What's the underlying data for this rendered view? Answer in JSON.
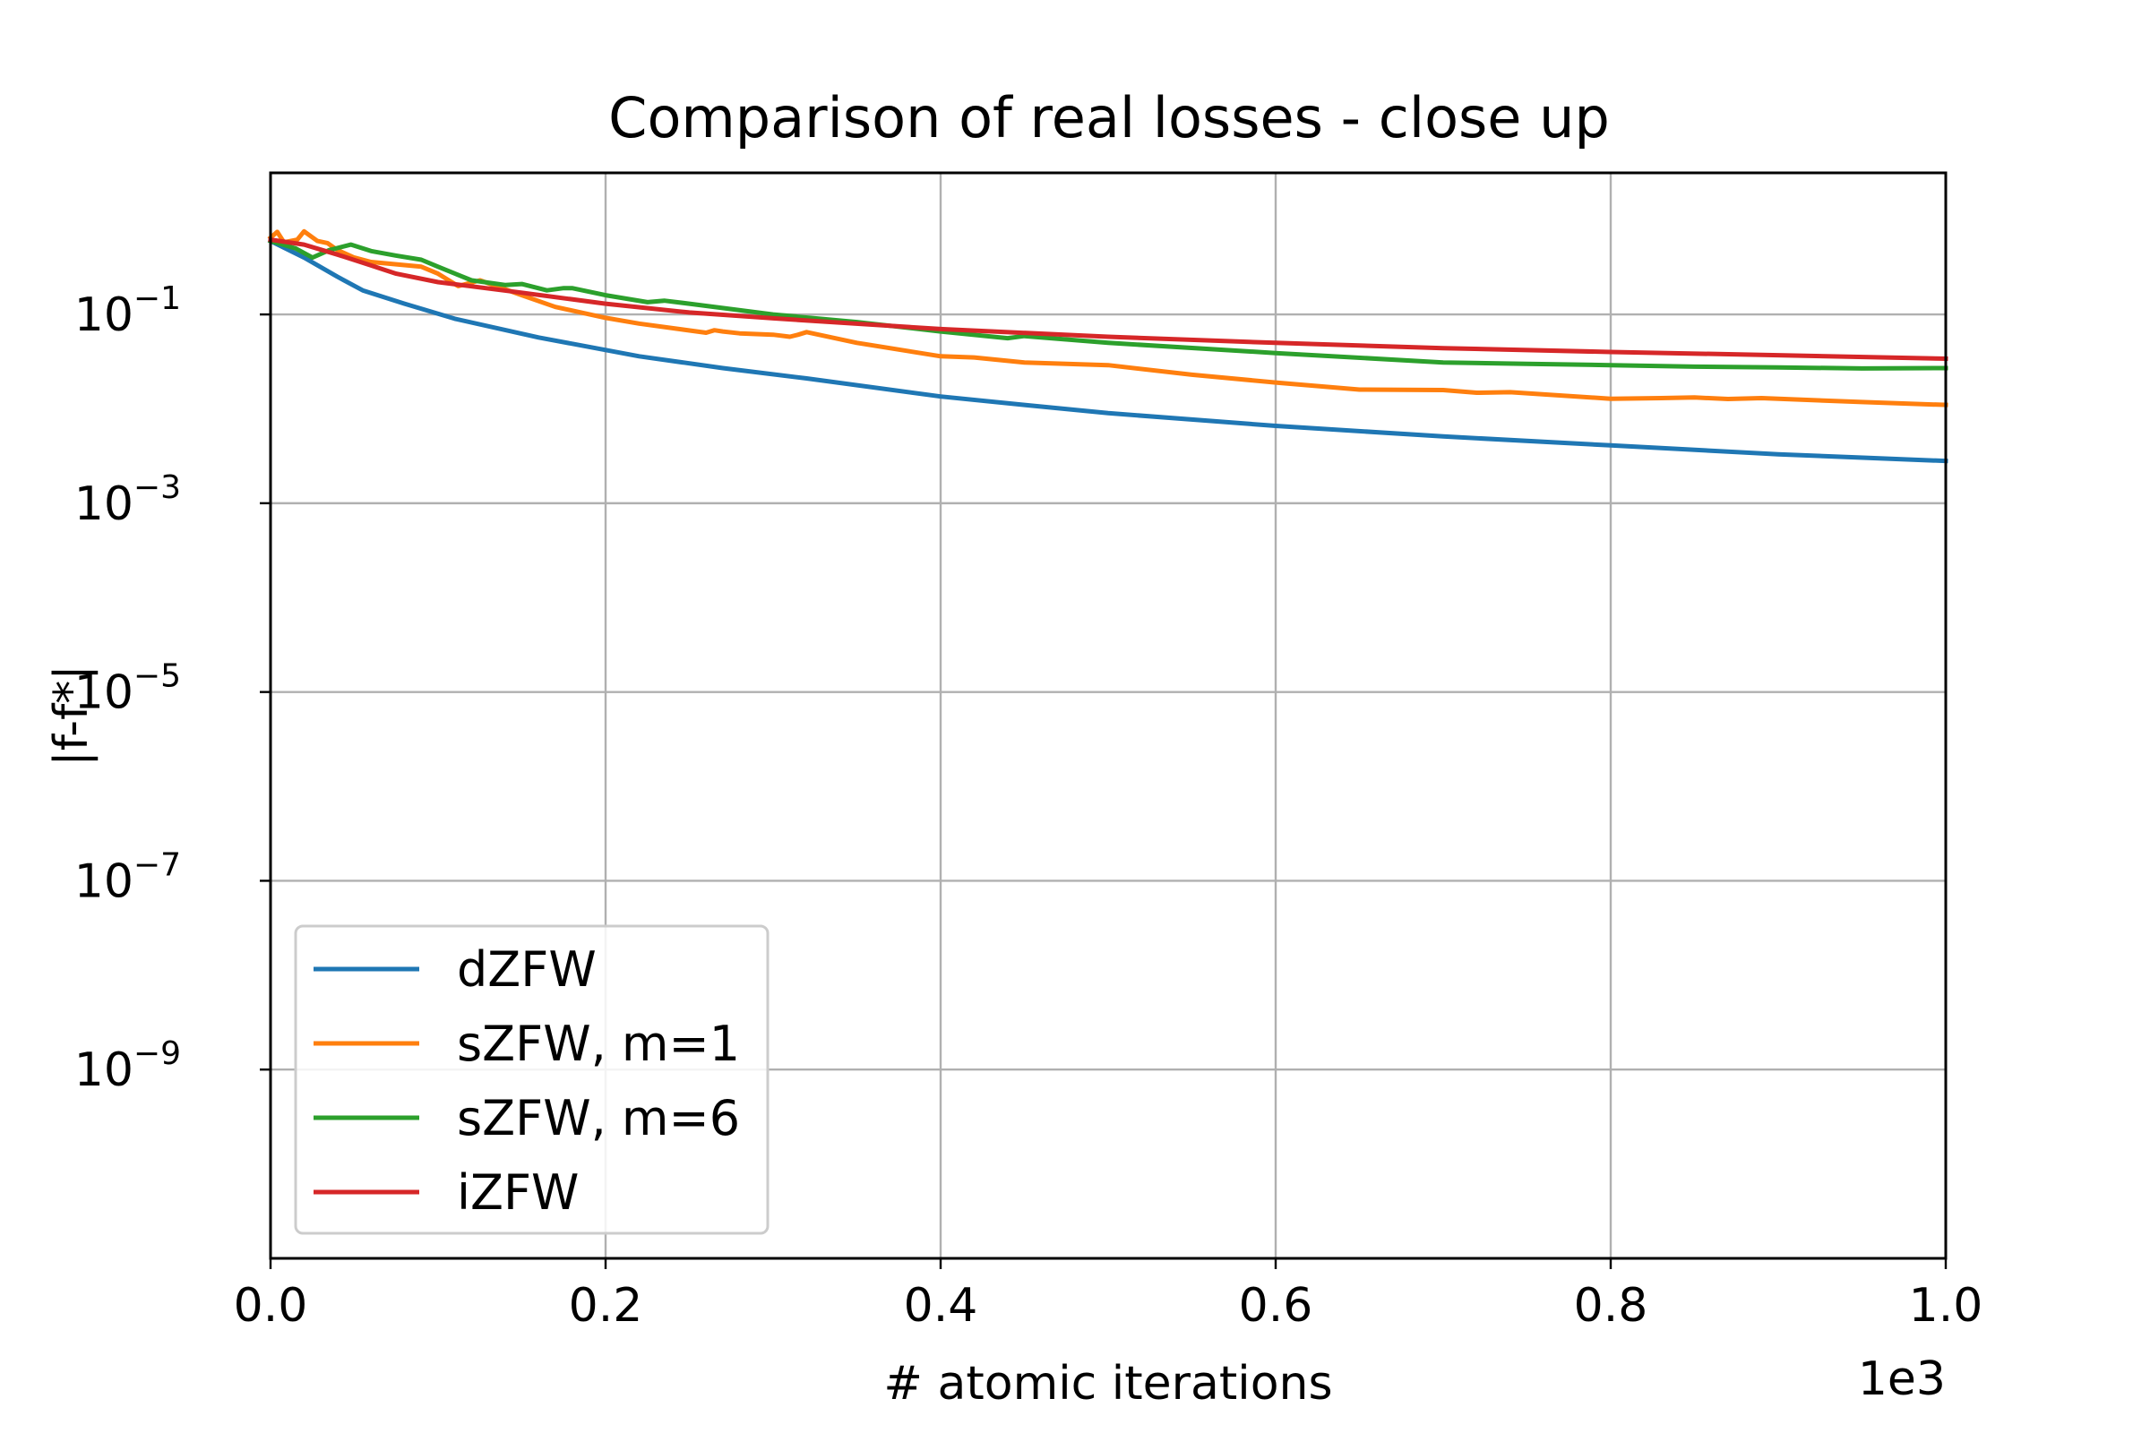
{
  "chart_data": {
    "type": "line",
    "title": "Comparison of real losses - close up",
    "xlabel": "# atomic iterations",
    "ylabel": "|f-f*|",
    "x_offset_label": "1e3",
    "xscale": "linear",
    "yscale": "log",
    "xlim": [
      0,
      1000
    ],
    "ylim_exp": [
      -11,
      0.5
    ],
    "grid": true,
    "legend_position": "lower-left",
    "x_ticks": [
      {
        "value": 0,
        "label": "0.0"
      },
      {
        "value": 200,
        "label": "0.2"
      },
      {
        "value": 400,
        "label": "0.4"
      },
      {
        "value": 600,
        "label": "0.6"
      },
      {
        "value": 800,
        "label": "0.8"
      },
      {
        "value": 1000,
        "label": "1.0"
      }
    ],
    "y_ticks": [
      {
        "exp": -1,
        "base": "10",
        "sup": "−1"
      },
      {
        "exp": -3,
        "base": "10",
        "sup": "−3"
      },
      {
        "exp": -5,
        "base": "10",
        "sup": "−5"
      },
      {
        "exp": -7,
        "base": "10",
        "sup": "−7"
      },
      {
        "exp": -9,
        "base": "10",
        "sup": "−9"
      }
    ],
    "series": [
      {
        "name": "dZFW",
        "color": "#1f77b4",
        "x": [
          0,
          20,
          40,
          55,
          80,
          110,
          160,
          220,
          270,
          320,
          400,
          450,
          500,
          600,
          700,
          800,
          900,
          1000
        ],
        "y": [
          0.6,
          0.4,
          0.25,
          0.18,
          0.13,
          0.09,
          0.057,
          0.036,
          0.027,
          0.021,
          0.0135,
          0.011,
          0.009,
          0.0066,
          0.0051,
          0.0041,
          0.0033,
          0.0028
        ]
      },
      {
        "name": "sZFW, m=1",
        "color": "#ff7f0e",
        "x": [
          0,
          4,
          8,
          16,
          20,
          28,
          34,
          40,
          50,
          60,
          75,
          90,
          100,
          112,
          125,
          150,
          170,
          200,
          220,
          260,
          265,
          270,
          280,
          300,
          310,
          315,
          320,
          350,
          400,
          420,
          450,
          500,
          550,
          600,
          650,
          700,
          720,
          740,
          800,
          830,
          850,
          870,
          890,
          950,
          1000
        ],
        "y": [
          0.65,
          0.75,
          0.58,
          0.62,
          0.76,
          0.6,
          0.57,
          0.48,
          0.4,
          0.36,
          0.34,
          0.32,
          0.27,
          0.2,
          0.23,
          0.16,
          0.12,
          0.092,
          0.08,
          0.064,
          0.068,
          0.066,
          0.063,
          0.061,
          0.058,
          0.061,
          0.065,
          0.05,
          0.036,
          0.035,
          0.031,
          0.029,
          0.023,
          0.019,
          0.016,
          0.0158,
          0.0148,
          0.015,
          0.0128,
          0.013,
          0.0132,
          0.0127,
          0.013,
          0.0118,
          0.011
        ]
      },
      {
        "name": "sZFW, m=6",
        "color": "#2ca02c",
        "x": [
          0,
          15,
          25,
          35,
          48,
          60,
          75,
          90,
          100,
          120,
          140,
          150,
          165,
          175,
          180,
          200,
          225,
          235,
          250,
          300,
          350,
          400,
          440,
          450,
          500,
          600,
          700,
          750,
          800,
          850,
          900,
          950,
          1000
        ],
        "y": [
          0.6,
          0.5,
          0.4,
          0.48,
          0.55,
          0.47,
          0.42,
          0.38,
          0.32,
          0.23,
          0.205,
          0.21,
          0.18,
          0.19,
          0.19,
          0.16,
          0.135,
          0.14,
          0.13,
          0.1,
          0.083,
          0.066,
          0.056,
          0.059,
          0.05,
          0.039,
          0.031,
          0.03,
          0.029,
          0.028,
          0.0275,
          0.0268,
          0.027
        ]
      },
      {
        "name": "iZFW",
        "color": "#d62728",
        "x": [
          0,
          20,
          40,
          60,
          75,
          100,
          150,
          200,
          250,
          300,
          400,
          500,
          600,
          700,
          800,
          900,
          1000
        ],
        "y": [
          0.62,
          0.55,
          0.43,
          0.33,
          0.27,
          0.22,
          0.17,
          0.13,
          0.105,
          0.091,
          0.07,
          0.058,
          0.05,
          0.044,
          0.04,
          0.037,
          0.034
        ]
      }
    ]
  }
}
